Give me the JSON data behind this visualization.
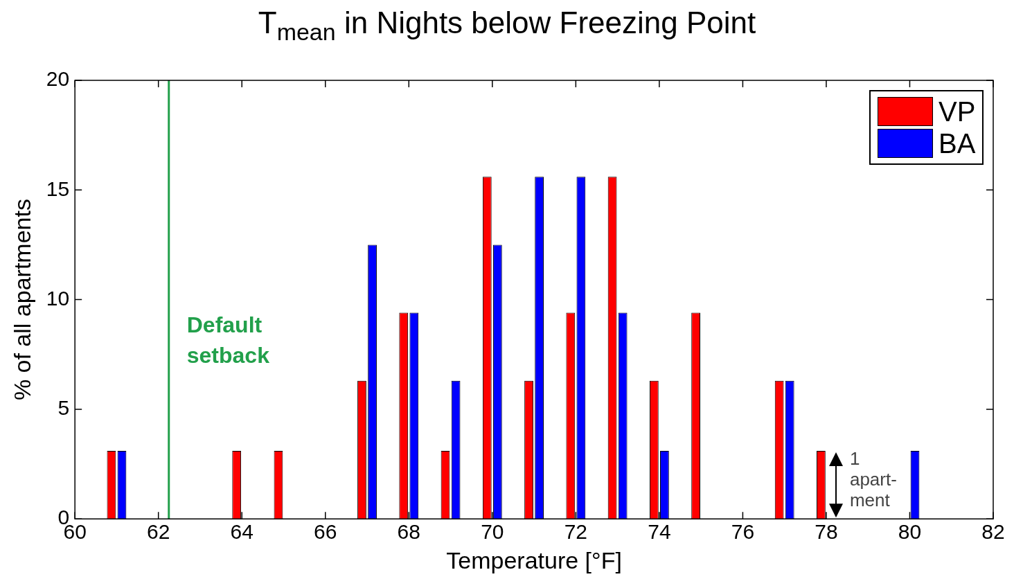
{
  "chart_data": {
    "type": "bar",
    "title": "T$_{mean}$ in Nights below Freezing Point",
    "xlabel": "Temperature [°F]",
    "ylabel": "% of all apartments",
    "x": [
      61,
      64,
      65,
      67,
      68,
      69,
      70,
      71,
      72,
      73,
      74,
      75,
      77,
      78,
      80
    ],
    "series": [
      {
        "name": "VP",
        "color": "#ff0000",
        "values": [
          3.1,
          3.1,
          3.1,
          6.3,
          9.4,
          3.1,
          15.6,
          6.3,
          9.4,
          15.6,
          6.3,
          9.4,
          6.3,
          3.1,
          null
        ]
      },
      {
        "name": "BA",
        "color": "#0000ff",
        "values": [
          3.1,
          null,
          null,
          12.5,
          9.4,
          6.3,
          12.5,
          15.6,
          15.6,
          9.4,
          3.1,
          null,
          6.3,
          null,
          3.1
        ]
      }
    ],
    "xlim": [
      60,
      82
    ],
    "xticks": [
      60,
      62,
      64,
      66,
      68,
      70,
      72,
      74,
      76,
      78,
      80,
      82
    ],
    "ylim": [
      0,
      20
    ],
    "yticks": [
      0,
      5,
      10,
      15,
      20
    ],
    "ref_lines": [
      {
        "axis": "x",
        "value": 62.25,
        "label": "Default setback",
        "color": "#22a04b"
      }
    ],
    "annotations": [
      {
        "text": "1 apart-ment",
        "x": 78,
        "y": 3.1
      }
    ],
    "legend": "top right",
    "grid": false
  }
}
